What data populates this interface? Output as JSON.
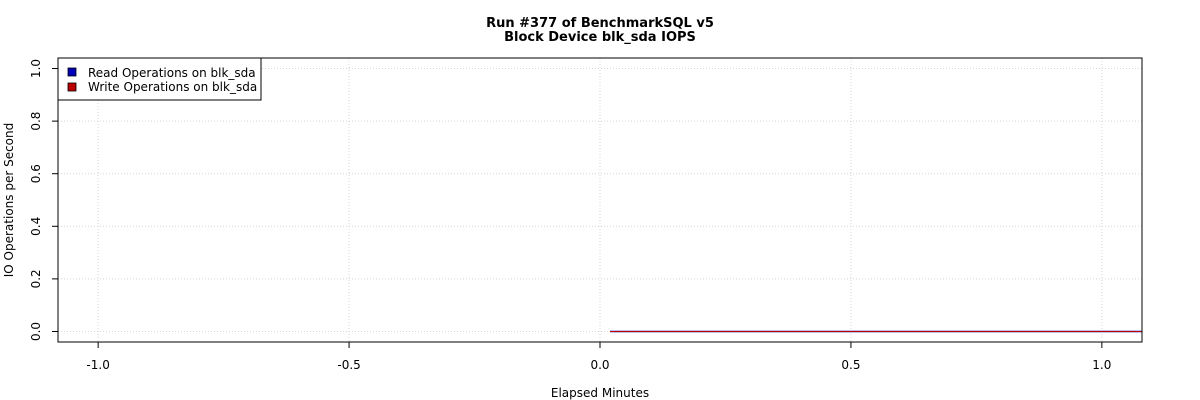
{
  "chart_data": {
    "type": "line",
    "title": "Run #377 of BenchmarkSQL v5",
    "subtitle": "Block Device blk_sda IOPS",
    "xlabel": "Elapsed Minutes",
    "ylabel": "IO Operations per Second",
    "xlim": [
      -1.08,
      1.08
    ],
    "ylim": [
      -0.04,
      1.04
    ],
    "x_ticks": [
      -1.0,
      -0.5,
      0.0,
      0.5,
      1.0
    ],
    "x_tick_labels": [
      "-1.0",
      "-0.5",
      "0.0",
      "0.5",
      "1.0"
    ],
    "y_ticks": [
      0.0,
      0.2,
      0.4,
      0.6,
      0.8,
      1.0
    ],
    "y_tick_labels": [
      "0.0",
      "0.2",
      "0.4",
      "0.6",
      "0.8",
      "1.0"
    ],
    "grid": true,
    "legend_position": "top-left",
    "series": [
      {
        "name": "Read Operations on blk_sda",
        "color": "#0000bb",
        "x": [
          0.02,
          1.08
        ],
        "y": [
          0,
          0
        ]
      },
      {
        "name": "Write Operations on blk_sda",
        "color": "#bb0000",
        "x": [
          0.02,
          1.08
        ],
        "y": [
          0,
          0
        ]
      }
    ]
  }
}
